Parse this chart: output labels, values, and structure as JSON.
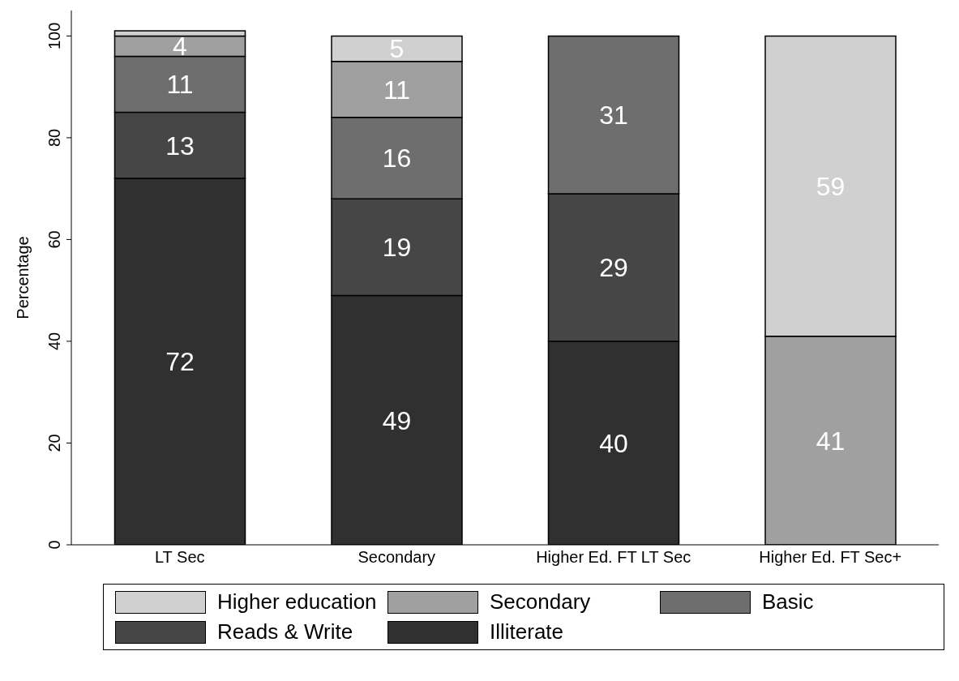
{
  "chart_data": {
    "type": "bar",
    "stacked": true,
    "ylabel": "Percentage",
    "categories": [
      "LT Sec",
      "Secondary",
      "Higher Ed. FT LT Sec",
      "Higher Ed. FT Sec+"
    ],
    "ylim": [
      0,
      105
    ],
    "yticks": [
      0,
      20,
      40,
      60,
      80,
      100
    ],
    "legend": "bottom",
    "grid": false,
    "series": [
      {
        "name": "Illiterate",
        "color": "#303030",
        "values": [
          72,
          49,
          40,
          null
        ],
        "value_labels": [
          "72",
          "49",
          "40",
          null
        ]
      },
      {
        "name": "Reads & Write",
        "color": "#464646",
        "values": [
          13,
          19,
          29,
          null
        ],
        "value_labels": [
          "13",
          "19",
          "29",
          null
        ]
      },
      {
        "name": "Basic",
        "color": "#6e6e6e",
        "values": [
          11,
          16,
          31,
          null
        ],
        "value_labels": [
          "11",
          "16",
          "31",
          null
        ]
      },
      {
        "name": "Secondary",
        "color": "#a0a0a0",
        "values": [
          4,
          11,
          null,
          41
        ],
        "value_labels": [
          "4",
          "11",
          null,
          "41"
        ]
      },
      {
        "name": "Higher education",
        "color": "#d0d0d0",
        "values": [
          1,
          5,
          null,
          59
        ],
        "value_labels": [
          null,
          "5",
          null,
          "59"
        ]
      }
    ]
  }
}
